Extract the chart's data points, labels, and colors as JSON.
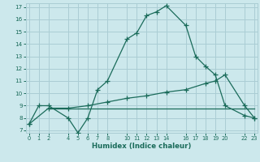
{
  "xlabel": "Humidex (Indice chaleur)",
  "bg_color": "#cce8ec",
  "grid_color": "#aacdd4",
  "line_color": "#1a6b5a",
  "curve1_x": [
    0,
    1,
    2,
    4,
    5,
    6,
    7,
    8,
    10,
    11,
    12,
    13,
    14,
    16,
    17,
    18,
    19,
    20,
    22,
    23
  ],
  "curve1_y": [
    7.5,
    9.0,
    9.0,
    8.0,
    6.8,
    8.0,
    10.3,
    11.0,
    14.4,
    14.9,
    16.3,
    16.6,
    17.1,
    15.5,
    13.0,
    12.2,
    11.5,
    9.0,
    8.2,
    8.0
  ],
  "curve2_x": [
    0,
    2,
    4,
    6,
    8,
    10,
    12,
    14,
    16,
    18,
    19,
    20,
    22,
    23
  ],
  "curve2_y": [
    7.5,
    8.8,
    8.8,
    9.0,
    9.3,
    9.6,
    9.8,
    10.1,
    10.3,
    10.8,
    11.0,
    11.5,
    9.0,
    8.0
  ],
  "curve3_x": [
    2,
    23
  ],
  "curve3_y": [
    8.8,
    8.8
  ],
  "xlim": [
    0,
    23
  ],
  "ylim": [
    6.8,
    17.3
  ],
  "xticks": [
    0,
    1,
    2,
    4,
    5,
    6,
    7,
    8,
    10,
    11,
    12,
    13,
    14,
    16,
    17,
    18,
    19,
    20,
    22,
    23
  ],
  "yticks": [
    7,
    8,
    9,
    10,
    11,
    12,
    13,
    14,
    15,
    16,
    17
  ]
}
